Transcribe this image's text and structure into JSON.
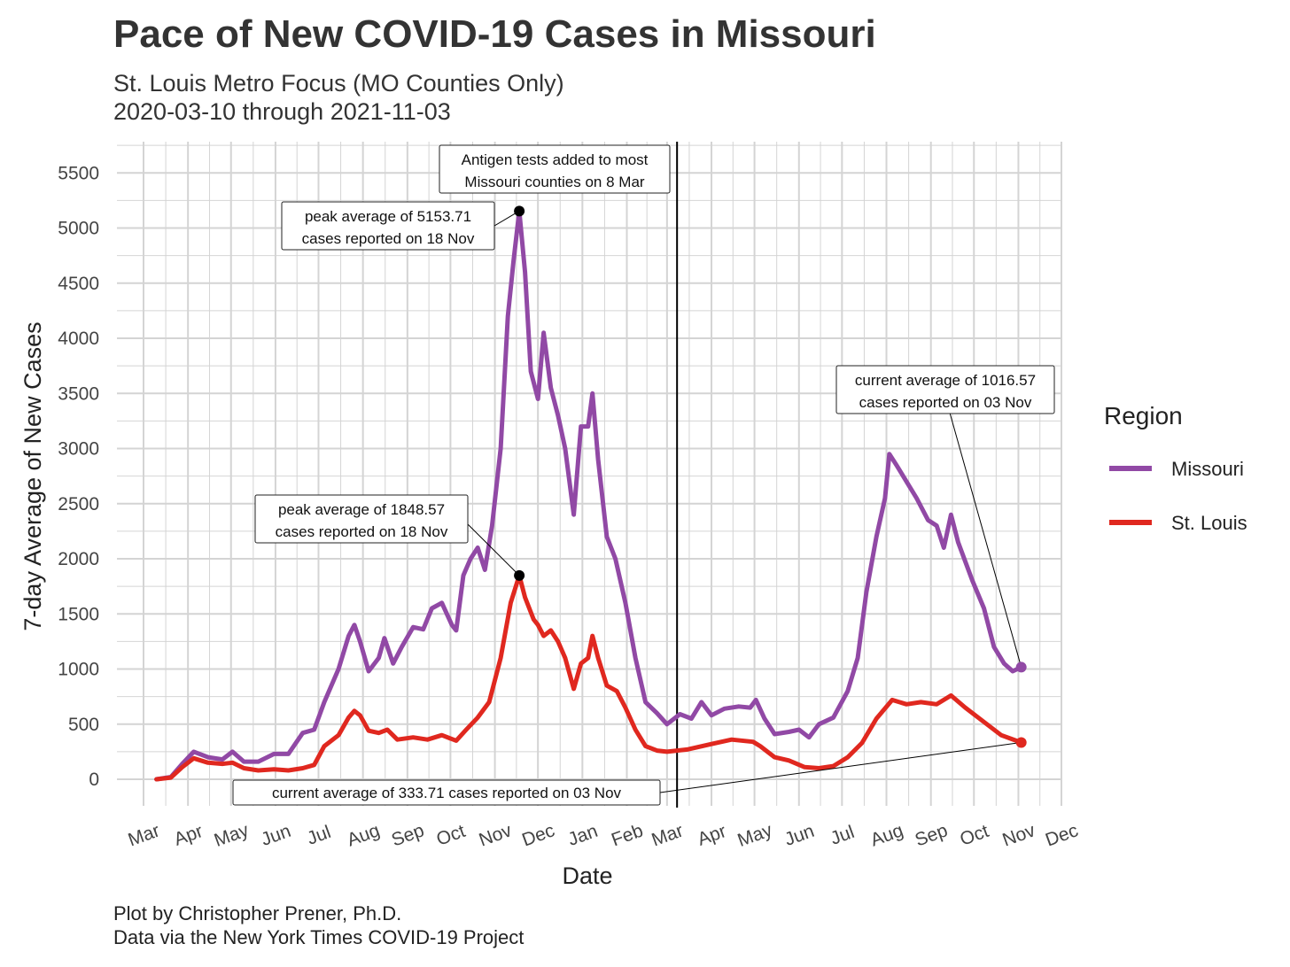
{
  "title": "Pace of New COVID-19 Cases in Missouri",
  "subtitle_line1": "St. Louis Metro Focus (MO Counties Only)",
  "subtitle_line2": "2020-03-10 through 2021-11-03",
  "caption_line1": "Plot by Christopher Prener, Ph.D.",
  "caption_line2": "Data via the New York Times COVID-19 Project",
  "colors": {
    "missouri": "#9149a5",
    "stlouis": "#e0281f",
    "grid": "#d4d4d4"
  },
  "chart_data": {
    "type": "line",
    "xlabel": "Date",
    "ylabel": "7-day Average of New Cases",
    "xlim": [
      "2020-03-01",
      "2021-12-01"
    ],
    "ylim": [
      0,
      5500
    ],
    "yticks": [
      0,
      500,
      1000,
      1500,
      2000,
      2500,
      3000,
      3500,
      4000,
      4500,
      5000,
      5500
    ],
    "xticks": [
      {
        "date": "2020-03-01",
        "label": "Mar"
      },
      {
        "date": "2020-04-01",
        "label": "Apr"
      },
      {
        "date": "2020-05-01",
        "label": "May"
      },
      {
        "date": "2020-06-01",
        "label": "Jun"
      },
      {
        "date": "2020-07-01",
        "label": "Jul"
      },
      {
        "date": "2020-08-01",
        "label": "Aug"
      },
      {
        "date": "2020-09-01",
        "label": "Sep"
      },
      {
        "date": "2020-10-01",
        "label": "Oct"
      },
      {
        "date": "2020-11-01",
        "label": "Nov"
      },
      {
        "date": "2020-12-01",
        "label": "Dec"
      },
      {
        "date": "2021-01-01",
        "label": "Jan"
      },
      {
        "date": "2021-02-01",
        "label": "Feb"
      },
      {
        "date": "2021-03-01",
        "label": "Mar"
      },
      {
        "date": "2021-04-01",
        "label": "Apr"
      },
      {
        "date": "2021-05-01",
        "label": "May"
      },
      {
        "date": "2021-06-01",
        "label": "Jun"
      },
      {
        "date": "2021-07-01",
        "label": "Jul"
      },
      {
        "date": "2021-08-01",
        "label": "Aug"
      },
      {
        "date": "2021-09-01",
        "label": "Sep"
      },
      {
        "date": "2021-10-01",
        "label": "Oct"
      },
      {
        "date": "2021-11-01",
        "label": "Nov"
      },
      {
        "date": "2021-12-01",
        "label": "Dec"
      }
    ],
    "grid": true,
    "legend": {
      "title": "Region",
      "position": "right"
    },
    "series": [
      {
        "name": "Missouri",
        "color": "#9149a5",
        "points": [
          [
            "2020-03-10",
            0
          ],
          [
            "2020-03-20",
            20
          ],
          [
            "2020-03-28",
            140
          ],
          [
            "2020-04-05",
            250
          ],
          [
            "2020-04-15",
            200
          ],
          [
            "2020-04-25",
            180
          ],
          [
            "2020-05-02",
            250
          ],
          [
            "2020-05-10",
            160
          ],
          [
            "2020-05-20",
            160
          ],
          [
            "2020-05-31",
            230
          ],
          [
            "2020-06-10",
            230
          ],
          [
            "2020-06-20",
            420
          ],
          [
            "2020-06-28",
            450
          ],
          [
            "2020-07-05",
            700
          ],
          [
            "2020-07-15",
            1000
          ],
          [
            "2020-07-22",
            1300
          ],
          [
            "2020-07-26",
            1400
          ],
          [
            "2020-07-30",
            1250
          ],
          [
            "2020-08-05",
            980
          ],
          [
            "2020-08-12",
            1100
          ],
          [
            "2020-08-16",
            1280
          ],
          [
            "2020-08-22",
            1050
          ],
          [
            "2020-08-28",
            1200
          ],
          [
            "2020-09-05",
            1380
          ],
          [
            "2020-09-12",
            1360
          ],
          [
            "2020-09-18",
            1550
          ],
          [
            "2020-09-25",
            1600
          ],
          [
            "2020-10-02",
            1400
          ],
          [
            "2020-10-05",
            1350
          ],
          [
            "2020-10-10",
            1850
          ],
          [
            "2020-10-15",
            2000
          ],
          [
            "2020-10-20",
            2100
          ],
          [
            "2020-10-25",
            1900
          ],
          [
            "2020-10-30",
            2300
          ],
          [
            "2020-11-05",
            3000
          ],
          [
            "2020-11-10",
            4200
          ],
          [
            "2020-11-14",
            4700
          ],
          [
            "2020-11-18",
            5153.71
          ],
          [
            "2020-11-22",
            4600
          ],
          [
            "2020-11-26",
            3700
          ],
          [
            "2020-12-01",
            3450
          ],
          [
            "2020-12-05",
            4050
          ],
          [
            "2020-12-10",
            3550
          ],
          [
            "2020-12-15",
            3300
          ],
          [
            "2020-12-20",
            3000
          ],
          [
            "2020-12-26",
            2400
          ],
          [
            "2020-12-31",
            3200
          ],
          [
            "2021-01-05",
            3200
          ],
          [
            "2021-01-08",
            3500
          ],
          [
            "2021-01-12",
            2900
          ],
          [
            "2021-01-18",
            2200
          ],
          [
            "2021-01-24",
            2000
          ],
          [
            "2021-01-31",
            1600
          ],
          [
            "2021-02-07",
            1100
          ],
          [
            "2021-02-14",
            700
          ],
          [
            "2021-02-22",
            600
          ],
          [
            "2021-03-01",
            500
          ],
          [
            "2021-03-10",
            590
          ],
          [
            "2021-03-18",
            550
          ],
          [
            "2021-03-25",
            700
          ],
          [
            "2021-04-01",
            580
          ],
          [
            "2021-04-10",
            640
          ],
          [
            "2021-04-20",
            660
          ],
          [
            "2021-04-28",
            650
          ],
          [
            "2021-05-02",
            720
          ],
          [
            "2021-05-08",
            550
          ],
          [
            "2021-05-15",
            410
          ],
          [
            "2021-05-25",
            430
          ],
          [
            "2021-06-01",
            450
          ],
          [
            "2021-06-08",
            380
          ],
          [
            "2021-06-15",
            500
          ],
          [
            "2021-06-25",
            560
          ],
          [
            "2021-07-05",
            800
          ],
          [
            "2021-07-12",
            1100
          ],
          [
            "2021-07-18",
            1700
          ],
          [
            "2021-07-25",
            2200
          ],
          [
            "2021-07-31",
            2550
          ],
          [
            "2021-08-03",
            2950
          ],
          [
            "2021-08-08",
            2850
          ],
          [
            "2021-08-15",
            2700
          ],
          [
            "2021-08-22",
            2550
          ],
          [
            "2021-08-30",
            2350
          ],
          [
            "2021-09-05",
            2300
          ],
          [
            "2021-09-10",
            2100
          ],
          [
            "2021-09-15",
            2400
          ],
          [
            "2021-09-20",
            2150
          ],
          [
            "2021-09-30",
            1800
          ],
          [
            "2021-10-08",
            1550
          ],
          [
            "2021-10-15",
            1200
          ],
          [
            "2021-10-22",
            1050
          ],
          [
            "2021-10-28",
            980
          ],
          [
            "2021-11-03",
            1016.57
          ]
        ]
      },
      {
        "name": "St. Louis",
        "color": "#e0281f",
        "points": [
          [
            "2020-03-10",
            0
          ],
          [
            "2020-03-20",
            15
          ],
          [
            "2020-03-28",
            110
          ],
          [
            "2020-04-05",
            190
          ],
          [
            "2020-04-15",
            150
          ],
          [
            "2020-04-25",
            140
          ],
          [
            "2020-05-02",
            150
          ],
          [
            "2020-05-10",
            100
          ],
          [
            "2020-05-20",
            80
          ],
          [
            "2020-05-31",
            90
          ],
          [
            "2020-06-10",
            80
          ],
          [
            "2020-06-20",
            100
          ],
          [
            "2020-06-28",
            130
          ],
          [
            "2020-07-05",
            300
          ],
          [
            "2020-07-15",
            400
          ],
          [
            "2020-07-22",
            560
          ],
          [
            "2020-07-26",
            620
          ],
          [
            "2020-07-30",
            580
          ],
          [
            "2020-08-05",
            440
          ],
          [
            "2020-08-12",
            420
          ],
          [
            "2020-08-18",
            450
          ],
          [
            "2020-08-25",
            360
          ],
          [
            "2020-09-05",
            380
          ],
          [
            "2020-09-15",
            360
          ],
          [
            "2020-09-25",
            400
          ],
          [
            "2020-10-05",
            350
          ],
          [
            "2020-10-12",
            450
          ],
          [
            "2020-10-20",
            560
          ],
          [
            "2020-10-28",
            700
          ],
          [
            "2020-11-05",
            1100
          ],
          [
            "2020-11-12",
            1600
          ],
          [
            "2020-11-18",
            1848.57
          ],
          [
            "2020-11-22",
            1650
          ],
          [
            "2020-11-28",
            1450
          ],
          [
            "2020-12-01",
            1400
          ],
          [
            "2020-12-05",
            1300
          ],
          [
            "2020-12-10",
            1350
          ],
          [
            "2020-12-15",
            1250
          ],
          [
            "2020-12-20",
            1100
          ],
          [
            "2020-12-26",
            820
          ],
          [
            "2020-12-31",
            1050
          ],
          [
            "2021-01-05",
            1100
          ],
          [
            "2021-01-08",
            1300
          ],
          [
            "2021-01-12",
            1100
          ],
          [
            "2021-01-18",
            850
          ],
          [
            "2021-01-25",
            800
          ],
          [
            "2021-01-31",
            650
          ],
          [
            "2021-02-07",
            450
          ],
          [
            "2021-02-14",
            300
          ],
          [
            "2021-02-22",
            260
          ],
          [
            "2021-03-01",
            250
          ],
          [
            "2021-03-15",
            270
          ],
          [
            "2021-04-01",
            320
          ],
          [
            "2021-04-15",
            360
          ],
          [
            "2021-04-30",
            340
          ],
          [
            "2021-05-05",
            300
          ],
          [
            "2021-05-15",
            200
          ],
          [
            "2021-05-25",
            170
          ],
          [
            "2021-06-05",
            110
          ],
          [
            "2021-06-15",
            100
          ],
          [
            "2021-06-25",
            120
          ],
          [
            "2021-07-05",
            200
          ],
          [
            "2021-07-15",
            330
          ],
          [
            "2021-07-25",
            550
          ],
          [
            "2021-08-05",
            720
          ],
          [
            "2021-08-15",
            680
          ],
          [
            "2021-08-25",
            700
          ],
          [
            "2021-09-05",
            680
          ],
          [
            "2021-09-15",
            760
          ],
          [
            "2021-09-25",
            650
          ],
          [
            "2021-10-08",
            520
          ],
          [
            "2021-10-20",
            400
          ],
          [
            "2021-11-03",
            333.71
          ]
        ]
      }
    ],
    "vline": {
      "date": "2021-03-08"
    },
    "annotations": [
      {
        "id": "antigen",
        "line1": "Antigen tests added to most",
        "line2": "Missouri counties on 8 Mar"
      },
      {
        "id": "mo_peak",
        "line1": "peak average of 5153.71",
        "line2": "cases reported on 18 Nov",
        "date": "2020-11-18",
        "value": 5153.71
      },
      {
        "id": "stl_peak",
        "line1": "peak average of 1848.57",
        "line2": "cases reported on 18 Nov",
        "date": "2020-11-18",
        "value": 1848.57
      },
      {
        "id": "mo_current",
        "line1": "current average of 1016.57",
        "line2": "cases reported on 03 Nov",
        "date": "2021-11-03",
        "value": 1016.57
      },
      {
        "id": "stl_current",
        "line1": "current average of 333.71 cases reported on 03 Nov",
        "line2": "",
        "date": "2021-11-03",
        "value": 333.71
      }
    ]
  }
}
